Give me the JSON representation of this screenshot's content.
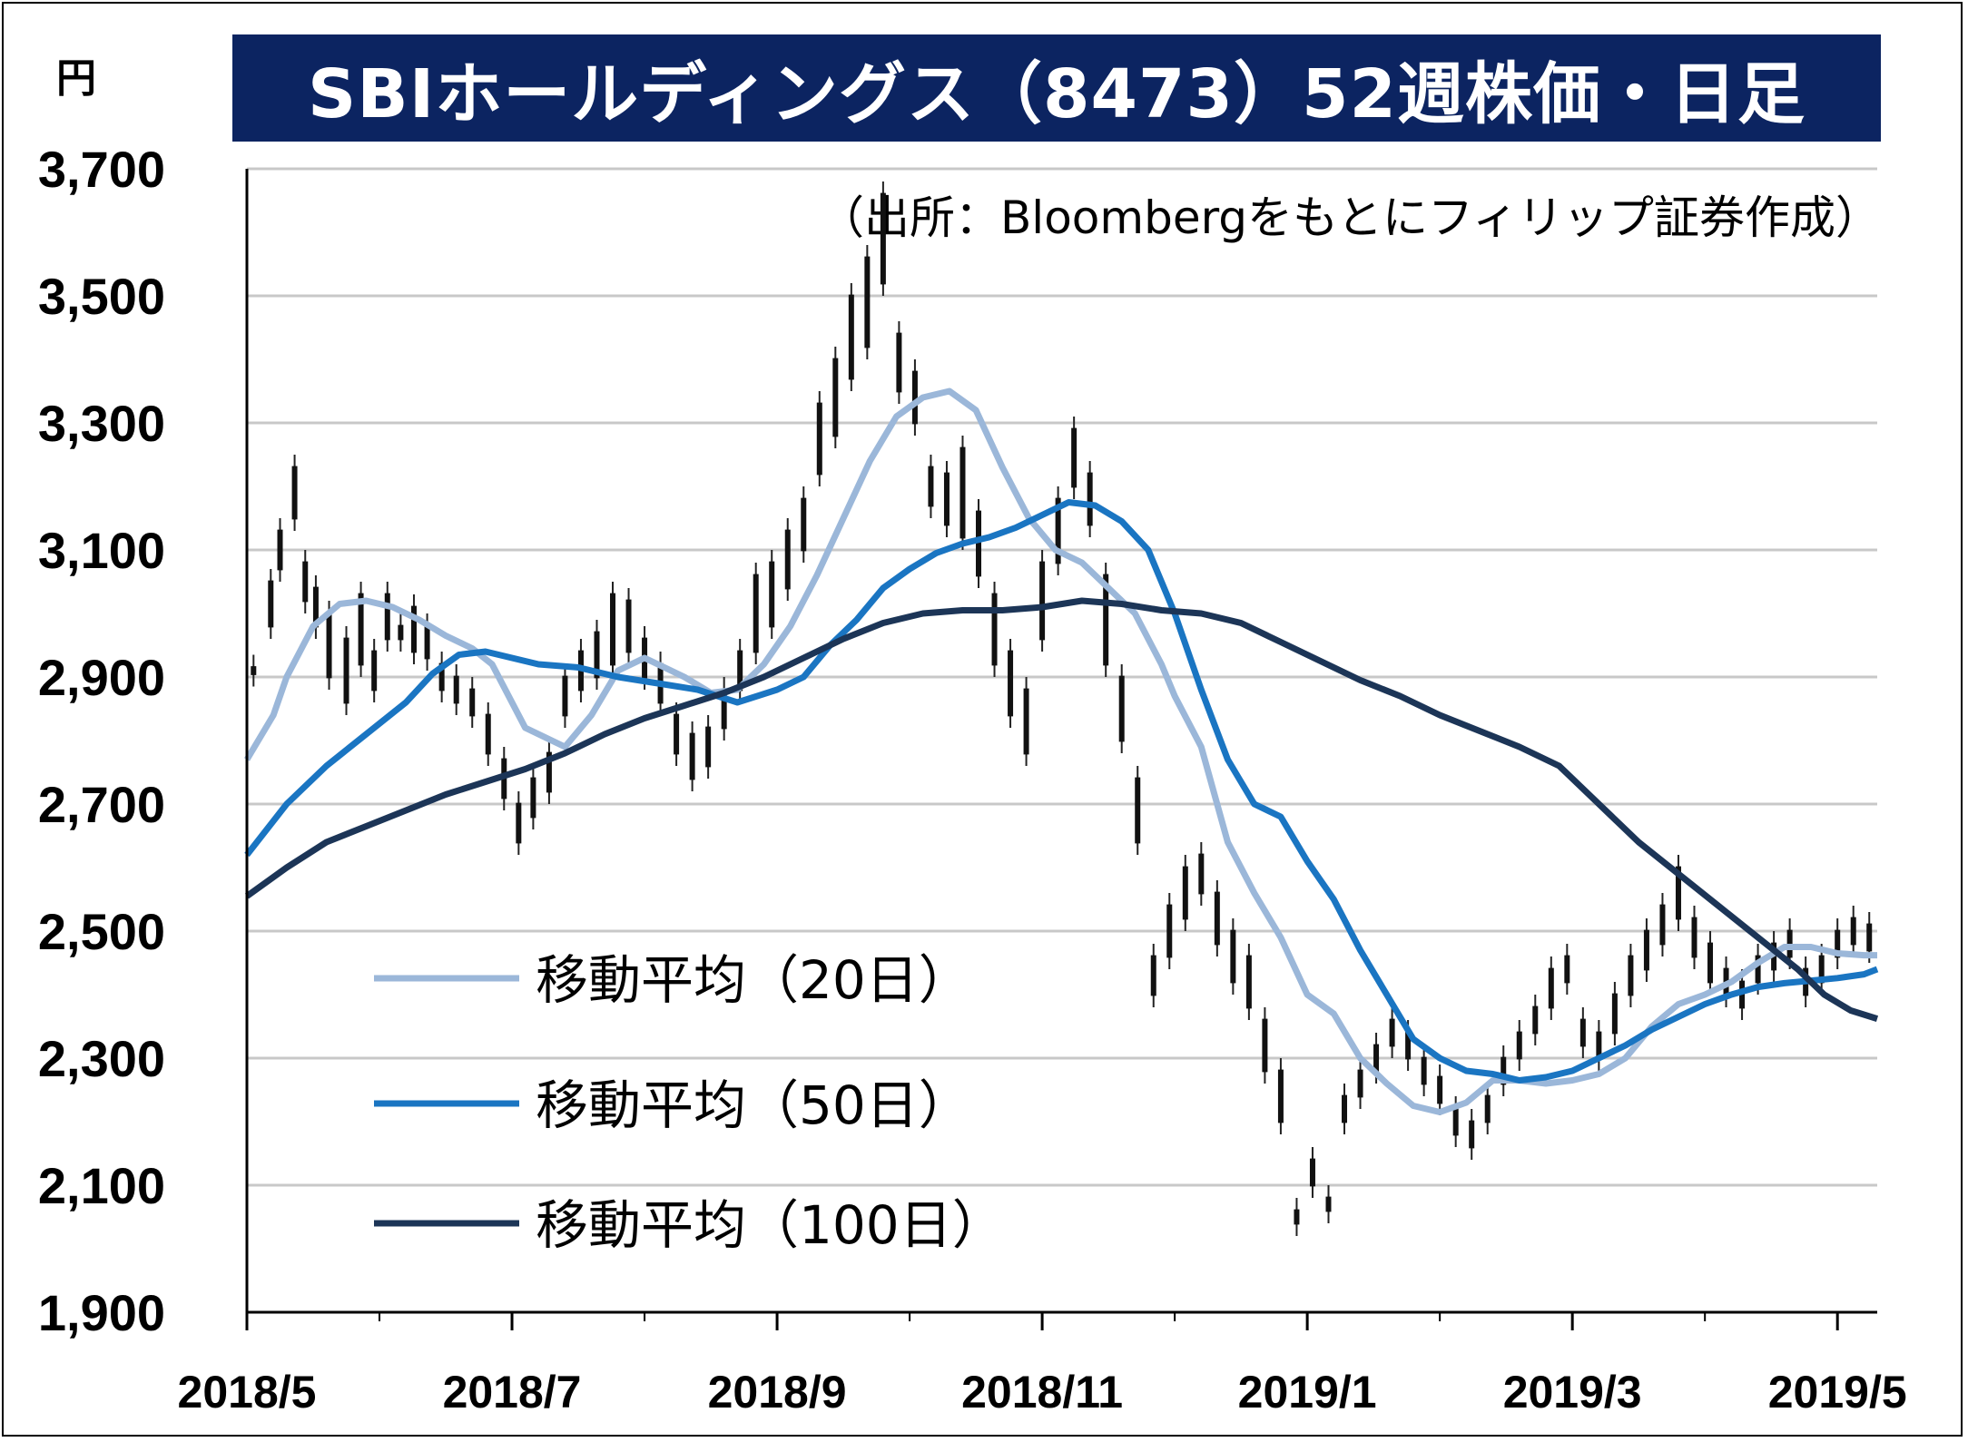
{
  "chart_data": {
    "type": "line",
    "title": "SBIホールディングス（8473）52週株価・日足",
    "subtitle": "（出所：Bloombergをもとにフィリップ証券作成）",
    "ylabel": "円",
    "xlabel": "",
    "ylim": [
      1900,
      3700
    ],
    "yticks": [
      "3,700",
      "3,500",
      "3,300",
      "3,100",
      "2,900",
      "2,700",
      "2,500",
      "2,300",
      "2,100",
      "1,900"
    ],
    "xticks": [
      "2018/5",
      "2018/7",
      "2018/9",
      "2018/11",
      "2019/1",
      "2019/3",
      "2019/5"
    ],
    "grid": true,
    "legend_position": "lower-left",
    "series": [
      {
        "name": "移動平均（20日）",
        "color": "#9bb7d9",
        "points": [
          [
            0.0,
            2770
          ],
          [
            0.2,
            2840
          ],
          [
            0.3,
            2900
          ],
          [
            0.5,
            2980
          ],
          [
            0.7,
            3015
          ],
          [
            0.9,
            3020
          ],
          [
            1.1,
            3010
          ],
          [
            1.3,
            2990
          ],
          [
            1.5,
            2965
          ],
          [
            1.7,
            2945
          ],
          [
            1.85,
            2920
          ],
          [
            2.0,
            2860
          ],
          [
            2.1,
            2820
          ],
          [
            2.3,
            2800
          ],
          [
            2.4,
            2790
          ],
          [
            2.6,
            2840
          ],
          [
            2.8,
            2910
          ],
          [
            3.0,
            2930
          ],
          [
            3.1,
            2920
          ],
          [
            3.3,
            2900
          ],
          [
            3.5,
            2875
          ],
          [
            3.7,
            2880
          ],
          [
            3.9,
            2920
          ],
          [
            4.1,
            2980
          ],
          [
            4.3,
            3060
          ],
          [
            4.5,
            3150
          ],
          [
            4.7,
            3240
          ],
          [
            4.9,
            3310
          ],
          [
            5.1,
            3340
          ],
          [
            5.3,
            3350
          ],
          [
            5.5,
            3320
          ],
          [
            5.7,
            3230
          ],
          [
            5.9,
            3150
          ],
          [
            6.1,
            3100
          ],
          [
            6.3,
            3080
          ],
          [
            6.5,
            3040
          ],
          [
            6.7,
            3000
          ],
          [
            6.9,
            2920
          ],
          [
            7.0,
            2870
          ],
          [
            7.2,
            2790
          ],
          [
            7.4,
            2640
          ],
          [
            7.6,
            2560
          ],
          [
            7.8,
            2490
          ],
          [
            8.0,
            2400
          ],
          [
            8.2,
            2370
          ],
          [
            8.4,
            2300
          ],
          [
            8.6,
            2260
          ],
          [
            8.8,
            2225
          ],
          [
            9.0,
            2215
          ],
          [
            9.2,
            2230
          ],
          [
            9.4,
            2265
          ],
          [
            9.6,
            2265
          ],
          [
            9.8,
            2260
          ],
          [
            10.0,
            2265
          ],
          [
            10.2,
            2275
          ],
          [
            10.4,
            2300
          ],
          [
            10.6,
            2350
          ],
          [
            10.8,
            2385
          ],
          [
            11.0,
            2400
          ],
          [
            11.2,
            2420
          ],
          [
            11.4,
            2450
          ],
          [
            11.6,
            2475
          ],
          [
            11.8,
            2475
          ],
          [
            12.0,
            2465
          ],
          [
            12.2,
            2462
          ],
          [
            12.3,
            2462
          ]
        ]
      },
      {
        "name": "移動平均（50日）",
        "color": "#1a75c2",
        "points": [
          [
            0.0,
            2620
          ],
          [
            0.3,
            2700
          ],
          [
            0.6,
            2760
          ],
          [
            0.9,
            2810
          ],
          [
            1.2,
            2860
          ],
          [
            1.4,
            2905
          ],
          [
            1.6,
            2935
          ],
          [
            1.8,
            2940
          ],
          [
            2.0,
            2930
          ],
          [
            2.2,
            2920
          ],
          [
            2.5,
            2915
          ],
          [
            2.8,
            2900
          ],
          [
            3.1,
            2890
          ],
          [
            3.4,
            2880
          ],
          [
            3.7,
            2860
          ],
          [
            4.0,
            2880
          ],
          [
            4.2,
            2900
          ],
          [
            4.4,
            2950
          ],
          [
            4.6,
            2990
          ],
          [
            4.8,
            3040
          ],
          [
            5.0,
            3070
          ],
          [
            5.2,
            3095
          ],
          [
            5.4,
            3110
          ],
          [
            5.6,
            3120
          ],
          [
            5.8,
            3135
          ],
          [
            6.0,
            3155
          ],
          [
            6.2,
            3175
          ],
          [
            6.4,
            3170
          ],
          [
            6.6,
            3145
          ],
          [
            6.8,
            3100
          ],
          [
            7.0,
            3000
          ],
          [
            7.2,
            2880
          ],
          [
            7.4,
            2770
          ],
          [
            7.6,
            2700
          ],
          [
            7.8,
            2680
          ],
          [
            8.0,
            2610
          ],
          [
            8.2,
            2550
          ],
          [
            8.4,
            2470
          ],
          [
            8.6,
            2400
          ],
          [
            8.8,
            2330
          ],
          [
            9.0,
            2300
          ],
          [
            9.2,
            2280
          ],
          [
            9.4,
            2275
          ],
          [
            9.6,
            2265
          ],
          [
            9.8,
            2270
          ],
          [
            10.0,
            2280
          ],
          [
            10.2,
            2300
          ],
          [
            10.4,
            2320
          ],
          [
            10.6,
            2345
          ],
          [
            10.8,
            2365
          ],
          [
            11.0,
            2385
          ],
          [
            11.2,
            2400
          ],
          [
            11.4,
            2412
          ],
          [
            11.6,
            2418
          ],
          [
            11.8,
            2422
          ],
          [
            12.0,
            2426
          ],
          [
            12.2,
            2432
          ],
          [
            12.3,
            2440
          ]
        ]
      },
      {
        "name": "移動平均（100日）",
        "color": "#1c3557",
        "points": [
          [
            0.0,
            2555
          ],
          [
            0.3,
            2600
          ],
          [
            0.6,
            2640
          ],
          [
            0.9,
            2665
          ],
          [
            1.2,
            2690
          ],
          [
            1.5,
            2715
          ],
          [
            1.8,
            2735
          ],
          [
            2.1,
            2755
          ],
          [
            2.4,
            2780
          ],
          [
            2.7,
            2810
          ],
          [
            3.0,
            2835
          ],
          [
            3.3,
            2855
          ],
          [
            3.6,
            2875
          ],
          [
            3.9,
            2900
          ],
          [
            4.2,
            2930
          ],
          [
            4.5,
            2960
          ],
          [
            4.8,
            2985
          ],
          [
            5.1,
            3000
          ],
          [
            5.4,
            3005
          ],
          [
            5.7,
            3005
          ],
          [
            6.0,
            3010
          ],
          [
            6.3,
            3020
          ],
          [
            6.6,
            3015
          ],
          [
            6.9,
            3005
          ],
          [
            7.2,
            3000
          ],
          [
            7.5,
            2985
          ],
          [
            7.8,
            2955
          ],
          [
            8.1,
            2925
          ],
          [
            8.4,
            2895
          ],
          [
            8.7,
            2870
          ],
          [
            9.0,
            2840
          ],
          [
            9.3,
            2815
          ],
          [
            9.6,
            2790
          ],
          [
            9.9,
            2760
          ],
          [
            10.2,
            2700
          ],
          [
            10.5,
            2640
          ],
          [
            10.8,
            2590
          ],
          [
            11.1,
            2540
          ],
          [
            11.4,
            2490
          ],
          [
            11.7,
            2440
          ],
          [
            11.9,
            2400
          ],
          [
            12.1,
            2375
          ],
          [
            12.3,
            2362
          ]
        ]
      }
    ],
    "candles": [
      [
        0.05,
        2885,
        2935
      ],
      [
        0.18,
        2960,
        3070
      ],
      [
        0.25,
        3050,
        3150
      ],
      [
        0.36,
        3130,
        3250
      ],
      [
        0.44,
        3000,
        3100
      ],
      [
        0.52,
        2960,
        3060
      ],
      [
        0.62,
        2880,
        3020
      ],
      [
        0.75,
        2840,
        2980
      ],
      [
        0.86,
        2900,
        3050
      ],
      [
        0.96,
        2860,
        2960
      ],
      [
        1.06,
        2940,
        3050
      ],
      [
        1.16,
        2940,
        3000
      ],
      [
        1.26,
        2920,
        3030
      ],
      [
        1.36,
        2910,
        3000
      ],
      [
        1.47,
        2860,
        2940
      ],
      [
        1.58,
        2840,
        2920
      ],
      [
        1.7,
        2820,
        2900
      ],
      [
        1.82,
        2760,
        2860
      ],
      [
        1.94,
        2690,
        2790
      ],
      [
        2.05,
        2620,
        2720
      ],
      [
        2.16,
        2660,
        2760
      ],
      [
        2.28,
        2700,
        2800
      ],
      [
        2.4,
        2820,
        2920
      ],
      [
        2.52,
        2860,
        2960
      ],
      [
        2.64,
        2880,
        2990
      ],
      [
        2.76,
        2900,
        3050
      ],
      [
        2.88,
        2920,
        3040
      ],
      [
        3.0,
        2880,
        2980
      ],
      [
        3.12,
        2840,
        2940
      ],
      [
        3.24,
        2760,
        2860
      ],
      [
        3.36,
        2720,
        2830
      ],
      [
        3.48,
        2740,
        2840
      ],
      [
        3.6,
        2800,
        2900
      ],
      [
        3.72,
        2860,
        2960
      ],
      [
        3.84,
        2920,
        3080
      ],
      [
        3.96,
        2960,
        3100
      ],
      [
        4.08,
        3020,
        3150
      ],
      [
        4.2,
        3080,
        3200
      ],
      [
        4.32,
        3200,
        3350
      ],
      [
        4.44,
        3260,
        3420
      ],
      [
        4.56,
        3350,
        3520
      ],
      [
        4.68,
        3400,
        3580
      ],
      [
        4.8,
        3500,
        3680
      ],
      [
        4.92,
        3330,
        3460
      ],
      [
        5.04,
        3280,
        3400
      ],
      [
        5.16,
        3150,
        3250
      ],
      [
        5.28,
        3120,
        3240
      ],
      [
        5.4,
        3100,
        3280
      ],
      [
        5.52,
        3040,
        3180
      ],
      [
        5.64,
        2900,
        3050
      ],
      [
        5.76,
        2820,
        2960
      ],
      [
        5.88,
        2760,
        2900
      ],
      [
        6.0,
        2940,
        3100
      ],
      [
        6.12,
        3060,
        3200
      ],
      [
        6.24,
        3180,
        3310
      ],
      [
        6.36,
        3120,
        3240
      ],
      [
        6.48,
        2900,
        3080
      ],
      [
        6.6,
        2780,
        2920
      ],
      [
        6.72,
        2620,
        2760
      ],
      [
        6.84,
        2380,
        2480
      ],
      [
        6.96,
        2440,
        2560
      ],
      [
        7.08,
        2500,
        2620
      ],
      [
        7.2,
        2540,
        2640
      ],
      [
        7.32,
        2460,
        2580
      ],
      [
        7.44,
        2400,
        2520
      ],
      [
        7.56,
        2360,
        2480
      ],
      [
        7.68,
        2260,
        2380
      ],
      [
        7.8,
        2180,
        2300
      ],
      [
        7.92,
        2020,
        2080
      ],
      [
        8.04,
        2080,
        2160
      ],
      [
        8.16,
        2040,
        2100
      ],
      [
        8.28,
        2180,
        2260
      ],
      [
        8.4,
        2220,
        2300
      ],
      [
        8.52,
        2260,
        2340
      ],
      [
        8.64,
        2300,
        2380
      ],
      [
        8.76,
        2280,
        2360
      ],
      [
        8.88,
        2240,
        2320
      ],
      [
        9.0,
        2210,
        2290
      ],
      [
        9.12,
        2160,
        2240
      ],
      [
        9.24,
        2140,
        2220
      ],
      [
        9.36,
        2180,
        2260
      ],
      [
        9.48,
        2240,
        2320
      ],
      [
        9.6,
        2280,
        2360
      ],
      [
        9.72,
        2320,
        2400
      ],
      [
        9.84,
        2360,
        2460
      ],
      [
        9.96,
        2400,
        2480
      ],
      [
        10.08,
        2300,
        2380
      ],
      [
        10.2,
        2280,
        2360
      ],
      [
        10.32,
        2320,
        2420
      ],
      [
        10.44,
        2380,
        2480
      ],
      [
        10.56,
        2420,
        2520
      ],
      [
        10.68,
        2460,
        2560
      ],
      [
        10.8,
        2500,
        2620
      ],
      [
        10.92,
        2440,
        2540
      ],
      [
        11.04,
        2400,
        2500
      ],
      [
        11.16,
        2380,
        2460
      ],
      [
        11.28,
        2360,
        2440
      ],
      [
        11.4,
        2400,
        2480
      ],
      [
        11.52,
        2420,
        2500
      ],
      [
        11.64,
        2440,
        2520
      ],
      [
        11.76,
        2380,
        2460
      ],
      [
        11.88,
        2400,
        2480
      ],
      [
        12.0,
        2440,
        2520
      ],
      [
        12.12,
        2460,
        2540
      ],
      [
        12.24,
        2450,
        2530
      ]
    ]
  }
}
